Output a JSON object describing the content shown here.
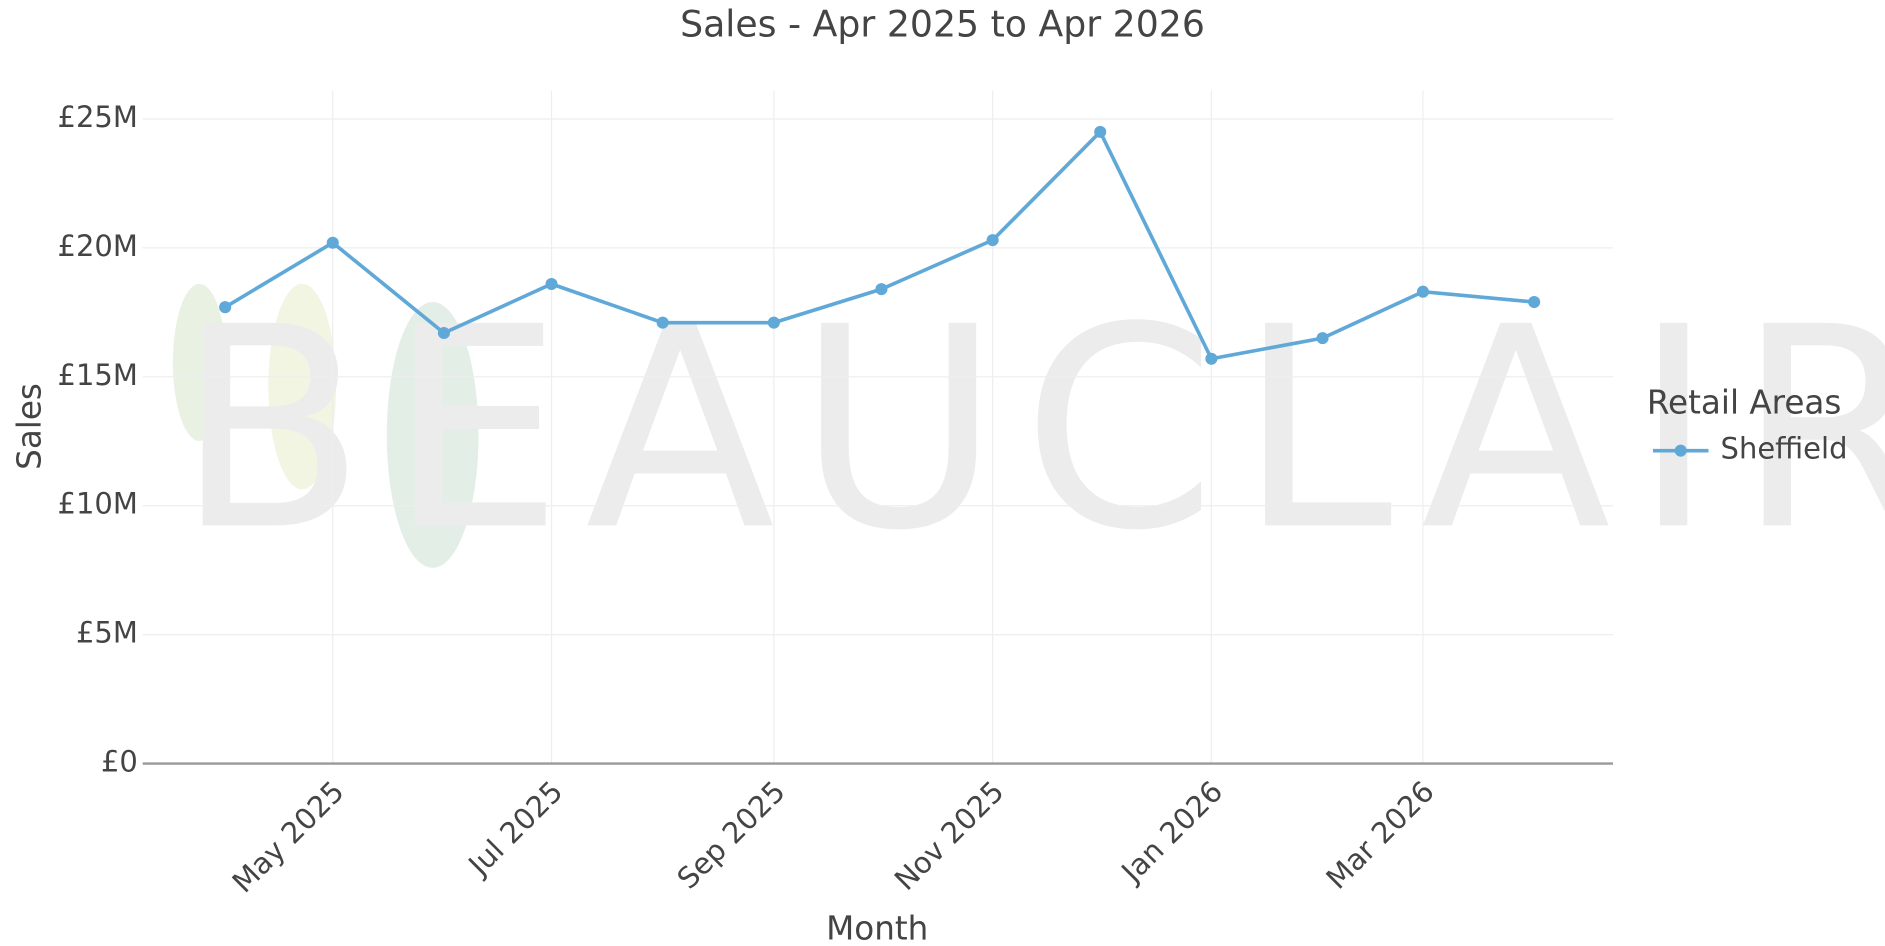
{
  "chart_data": {
    "type": "line",
    "title": "Sales - Apr 2025 to Apr 2026",
    "x_label": "Month",
    "y_label": "Sales",
    "watermark": "BEAUCLAIR",
    "legend_title": "Retail Areas",
    "legend": "right",
    "grid": true,
    "x": [
      "2025-04",
      "2025-05",
      "2025-06",
      "2025-07",
      "2025-08",
      "2025-09",
      "2025-10",
      "2025-11",
      "2025-12",
      "2026-01",
      "2026-02",
      "2026-03",
      "2026-04"
    ],
    "series": [
      {
        "name": "Sheffield",
        "color": "#5fa8d8",
        "values": [
          17700000,
          20200000,
          16700000,
          18600000,
          17100000,
          17100000,
          18400000,
          20300000,
          24500000,
          15700000,
          16500000,
          18300000,
          17900000
        ]
      }
    ],
    "xlim": [
      "2025-03-09",
      "2026-04-23"
    ],
    "xticks": [
      {
        "value": "2025-05",
        "label": "May 2025"
      },
      {
        "value": "2025-07",
        "label": "Jul 2025"
      },
      {
        "value": "2025-09",
        "label": "Sep 2025"
      },
      {
        "value": "2025-11",
        "label": "Nov 2025"
      },
      {
        "value": "2026-01",
        "label": "Jan 2026"
      },
      {
        "value": "2026-03",
        "label": "Mar 2026"
      }
    ],
    "ylim": [
      0,
      26100000
    ],
    "yticks": [
      {
        "value": 0,
        "label": "£0"
      },
      {
        "value": 5000000,
        "label": "£5M"
      },
      {
        "value": 10000000,
        "label": "£10M"
      },
      {
        "value": 15000000,
        "label": "£15M"
      },
      {
        "value": 20000000,
        "label": "£20M"
      },
      {
        "value": 25000000,
        "label": "£25M"
      }
    ]
  }
}
